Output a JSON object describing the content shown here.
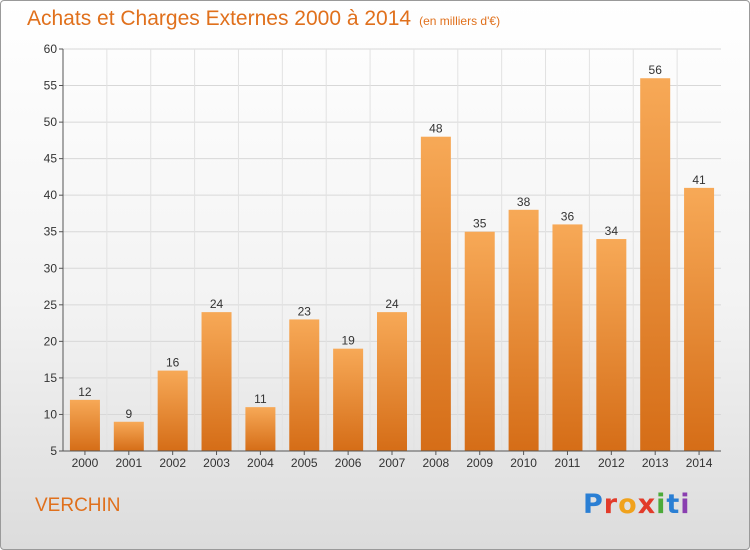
{
  "title": "Achats et Charges Externes 2000 à 2014",
  "subtitle": "(en milliers d'€)",
  "town": "VERCHIN",
  "brand": "Proxiti",
  "colors": {
    "accent": "#e0701c",
    "bar_top": "#f7a957",
    "bar_bottom": "#d56d17"
  },
  "chart_data": {
    "type": "bar",
    "title": "Achats et Charges Externes 2000 à 2014",
    "subtitle": "(en milliers d'€)",
    "xlabel": "",
    "ylabel": "",
    "categories": [
      "2000",
      "2001",
      "2002",
      "2003",
      "2004",
      "2005",
      "2006",
      "2007",
      "2008",
      "2009",
      "2010",
      "2011",
      "2012",
      "2013",
      "2014"
    ],
    "values": [
      12,
      9,
      16,
      24,
      11,
      23,
      19,
      24,
      48,
      35,
      38,
      36,
      34,
      56,
      41
    ],
    "ylim": [
      5,
      60
    ],
    "yticks": [
      5,
      10,
      15,
      20,
      25,
      30,
      35,
      40,
      45,
      50,
      55,
      60
    ],
    "grid": true,
    "data_labels": true,
    "legend": "none"
  }
}
